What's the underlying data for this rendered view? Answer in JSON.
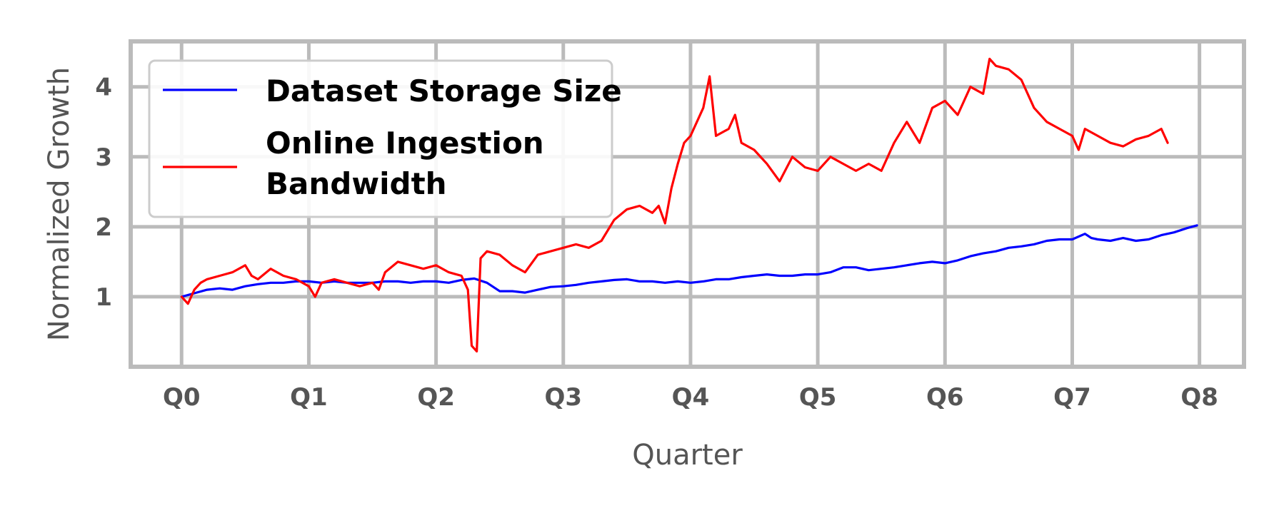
{
  "chart_data": {
    "type": "line",
    "title": "",
    "xlabel": "Quarter",
    "ylabel": "Normalized Growth",
    "x_ticks": [
      "Q0",
      "Q1",
      "Q2",
      "Q3",
      "Q4",
      "Q5",
      "Q6",
      "Q7",
      "Q8"
    ],
    "y_ticks": [
      1,
      2,
      3,
      4
    ],
    "xlim": [
      -0.4,
      8.35
    ],
    "ylim": [
      0.0,
      4.65
    ],
    "grid": true,
    "legend_position": "top-left",
    "series": [
      {
        "name": "Dataset Storage Size",
        "color": "#0000ff",
        "x": [
          0.0,
          0.1,
          0.2,
          0.3,
          0.4,
          0.5,
          0.6,
          0.7,
          0.8,
          0.9,
          1.0,
          1.1,
          1.2,
          1.3,
          1.4,
          1.5,
          1.6,
          1.7,
          1.8,
          1.9,
          2.0,
          2.1,
          2.2,
          2.3,
          2.4,
          2.5,
          2.6,
          2.7,
          2.8,
          2.9,
          3.0,
          3.1,
          3.2,
          3.3,
          3.4,
          3.5,
          3.6,
          3.7,
          3.8,
          3.9,
          4.0,
          4.1,
          4.2,
          4.3,
          4.4,
          4.5,
          4.6,
          4.7,
          4.8,
          4.9,
          5.0,
          5.1,
          5.2,
          5.3,
          5.4,
          5.5,
          5.6,
          5.7,
          5.8,
          5.9,
          6.0,
          6.1,
          6.2,
          6.3,
          6.4,
          6.5,
          6.6,
          6.7,
          6.8,
          6.9,
          7.0,
          7.1,
          7.15,
          7.2,
          7.3,
          7.4,
          7.5,
          7.6,
          7.7,
          7.8,
          7.9,
          7.98
        ],
        "y": [
          1.0,
          1.05,
          1.1,
          1.12,
          1.1,
          1.15,
          1.18,
          1.2,
          1.2,
          1.22,
          1.22,
          1.2,
          1.22,
          1.2,
          1.2,
          1.2,
          1.22,
          1.22,
          1.2,
          1.22,
          1.22,
          1.2,
          1.24,
          1.26,
          1.2,
          1.08,
          1.08,
          1.06,
          1.1,
          1.14,
          1.15,
          1.17,
          1.2,
          1.22,
          1.24,
          1.25,
          1.22,
          1.22,
          1.2,
          1.22,
          1.2,
          1.22,
          1.25,
          1.25,
          1.28,
          1.3,
          1.32,
          1.3,
          1.3,
          1.32,
          1.32,
          1.35,
          1.42,
          1.42,
          1.38,
          1.4,
          1.42,
          1.45,
          1.48,
          1.5,
          1.48,
          1.52,
          1.58,
          1.62,
          1.65,
          1.7,
          1.72,
          1.75,
          1.8,
          1.82,
          1.82,
          1.9,
          1.84,
          1.82,
          1.8,
          1.84,
          1.8,
          1.82,
          1.88,
          1.92,
          1.98,
          2.02
        ]
      },
      {
        "name": "Online Ingestion Bandwidth",
        "color": "#ff0000",
        "x": [
          0.0,
          0.05,
          0.1,
          0.15,
          0.2,
          0.3,
          0.4,
          0.5,
          0.55,
          0.6,
          0.7,
          0.8,
          0.9,
          1.0,
          1.05,
          1.1,
          1.2,
          1.3,
          1.4,
          1.5,
          1.55,
          1.6,
          1.7,
          1.8,
          1.9,
          2.0,
          2.1,
          2.2,
          2.25,
          2.28,
          2.32,
          2.35,
          2.4,
          2.5,
          2.6,
          2.7,
          2.8,
          2.9,
          3.0,
          3.1,
          3.2,
          3.3,
          3.4,
          3.5,
          3.6,
          3.7,
          3.75,
          3.8,
          3.85,
          3.9,
          3.95,
          4.0,
          4.1,
          4.15,
          4.2,
          4.3,
          4.35,
          4.4,
          4.5,
          4.6,
          4.7,
          4.8,
          4.9,
          5.0,
          5.1,
          5.2,
          5.3,
          5.4,
          5.5,
          5.6,
          5.7,
          5.8,
          5.9,
          6.0,
          6.1,
          6.2,
          6.3,
          6.35,
          6.4,
          6.5,
          6.6,
          6.7,
          6.8,
          6.9,
          7.0,
          7.05,
          7.1,
          7.2,
          7.3,
          7.4,
          7.5,
          7.6,
          7.7,
          7.75
        ],
        "y": [
          1.0,
          0.9,
          1.1,
          1.2,
          1.25,
          1.3,
          1.35,
          1.45,
          1.3,
          1.25,
          1.4,
          1.3,
          1.25,
          1.15,
          1.0,
          1.2,
          1.25,
          1.2,
          1.15,
          1.2,
          1.1,
          1.35,
          1.5,
          1.45,
          1.4,
          1.45,
          1.35,
          1.3,
          1.1,
          0.3,
          0.22,
          1.55,
          1.65,
          1.6,
          1.45,
          1.35,
          1.6,
          1.65,
          1.7,
          1.75,
          1.7,
          1.8,
          2.1,
          2.25,
          2.3,
          2.2,
          2.3,
          2.05,
          2.55,
          2.9,
          3.2,
          3.3,
          3.7,
          4.15,
          3.3,
          3.4,
          3.6,
          3.2,
          3.1,
          2.9,
          2.65,
          3.0,
          2.85,
          2.8,
          3.0,
          2.9,
          2.8,
          2.9,
          2.8,
          3.2,
          3.5,
          3.2,
          3.7,
          3.8,
          3.6,
          4.0,
          3.9,
          4.4,
          4.3,
          4.25,
          4.1,
          3.7,
          3.5,
          3.4,
          3.3,
          3.1,
          3.4,
          3.3,
          3.2,
          3.15,
          3.25,
          3.3,
          3.4,
          3.2
        ]
      }
    ]
  }
}
